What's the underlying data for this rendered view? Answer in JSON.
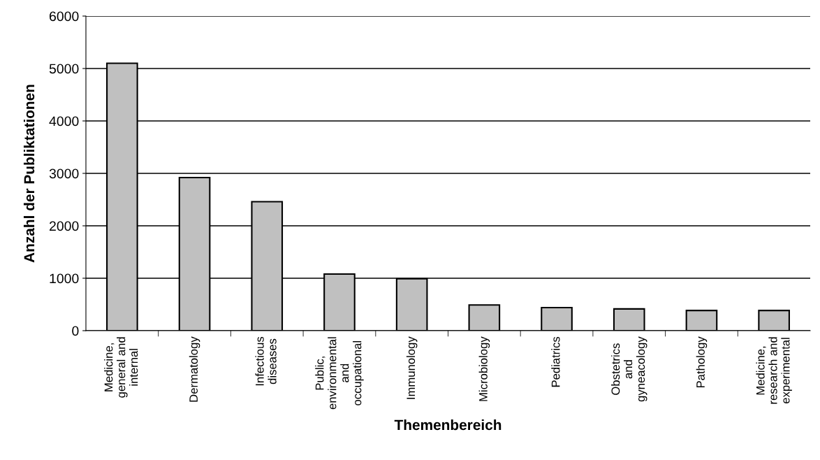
{
  "chart_data": {
    "type": "bar",
    "xlabel": "Themenbereich",
    "ylabel": "Anzahl der Publiktationen",
    "categories": [
      "Medicine,\ngeneral and\ninternal",
      "Dermatology",
      "Infectious\ndiseases",
      "Public,\nenvironmental\nand\noccupational",
      "Immunology",
      "Microbiology",
      "Pediatrics",
      "Obstetrics\nand\ngyneacology",
      "Pathology",
      "Medicine,\nresearch and\nexperimental"
    ],
    "values": [
      5100,
      2920,
      2460,
      1080,
      990,
      490,
      440,
      415,
      385,
      385
    ],
    "color": "#c0c0c0",
    "ylim": [
      0,
      6000
    ],
    "yticks": [
      0,
      1000,
      2000,
      3000,
      4000,
      5000,
      6000
    ],
    "grid": "y",
    "legend": false
  }
}
